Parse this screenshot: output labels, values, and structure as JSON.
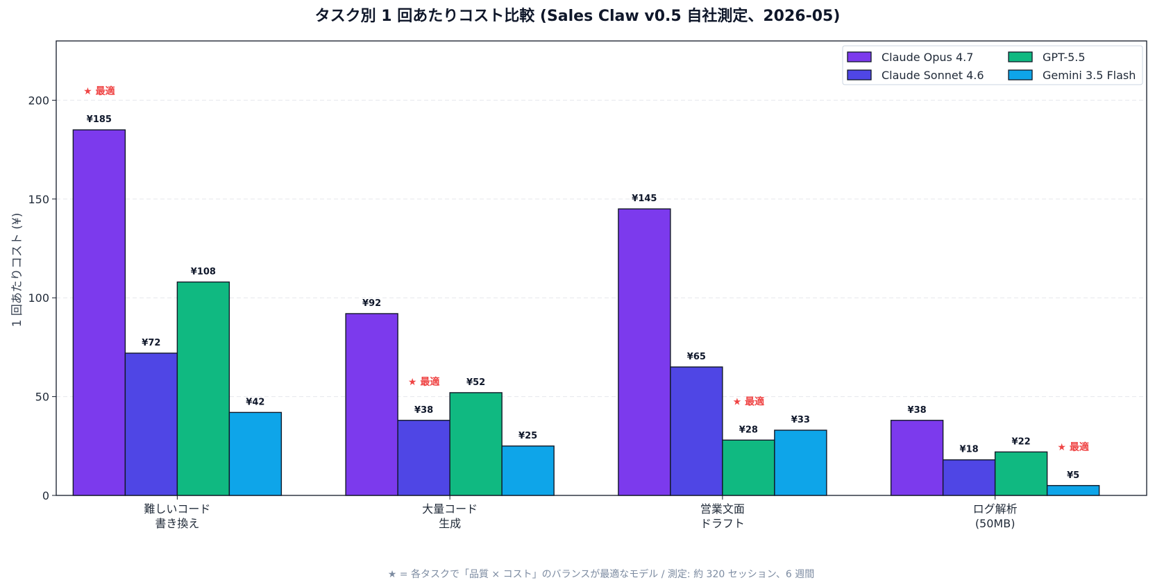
{
  "chart_data": {
    "type": "bar",
    "title": "タスク別 1 回あたりコスト比較 (Sales Claw v0.5 自社測定、2026-05)",
    "ylabel": "1 回あたりコスト (¥)",
    "xlabel": "",
    "ylim": [
      0,
      230
    ],
    "yticks": [
      0,
      50,
      100,
      150,
      200
    ],
    "grid": true,
    "legend_position": "top-right",
    "categories": [
      [
        "難しいコード",
        "書き換え"
      ],
      [
        "大量コード",
        "生成"
      ],
      [
        "営業文面",
        "ドラフト"
      ],
      [
        "ログ解析",
        "(50MB)"
      ]
    ],
    "series": [
      {
        "name": "Claude Opus 4.7",
        "color": "#7c3aed",
        "values": [
          185,
          92,
          145,
          38
        ],
        "labels": [
          "¥185",
          "¥92",
          "¥145",
          "¥38"
        ]
      },
      {
        "name": "Claude Sonnet 4.6",
        "color": "#4f46e5",
        "values": [
          72,
          38,
          65,
          18
        ],
        "labels": [
          "¥72",
          "¥38",
          "¥65",
          "¥18"
        ]
      },
      {
        "name": "GPT-5.5",
        "color": "#10b981",
        "values": [
          108,
          52,
          28,
          22
        ],
        "labels": [
          "¥108",
          "¥52",
          "¥28",
          "¥22"
        ]
      },
      {
        "name": "Gemini 3.5 Flash",
        "color": "#0ea5e9",
        "values": [
          42,
          25,
          33,
          5
        ],
        "labels": [
          "¥42",
          "¥25",
          "¥33",
          "¥5"
        ]
      }
    ],
    "best_marker_text": "★ 最適",
    "best_series_index": [
      0,
      1,
      2,
      3
    ],
    "best_marker_color": "#ef4444",
    "footnote": "★ = 各タスクで「品質 × コスト」のバランスが最適なモデル / 測定: 約 320 セッション、6 週間"
  }
}
